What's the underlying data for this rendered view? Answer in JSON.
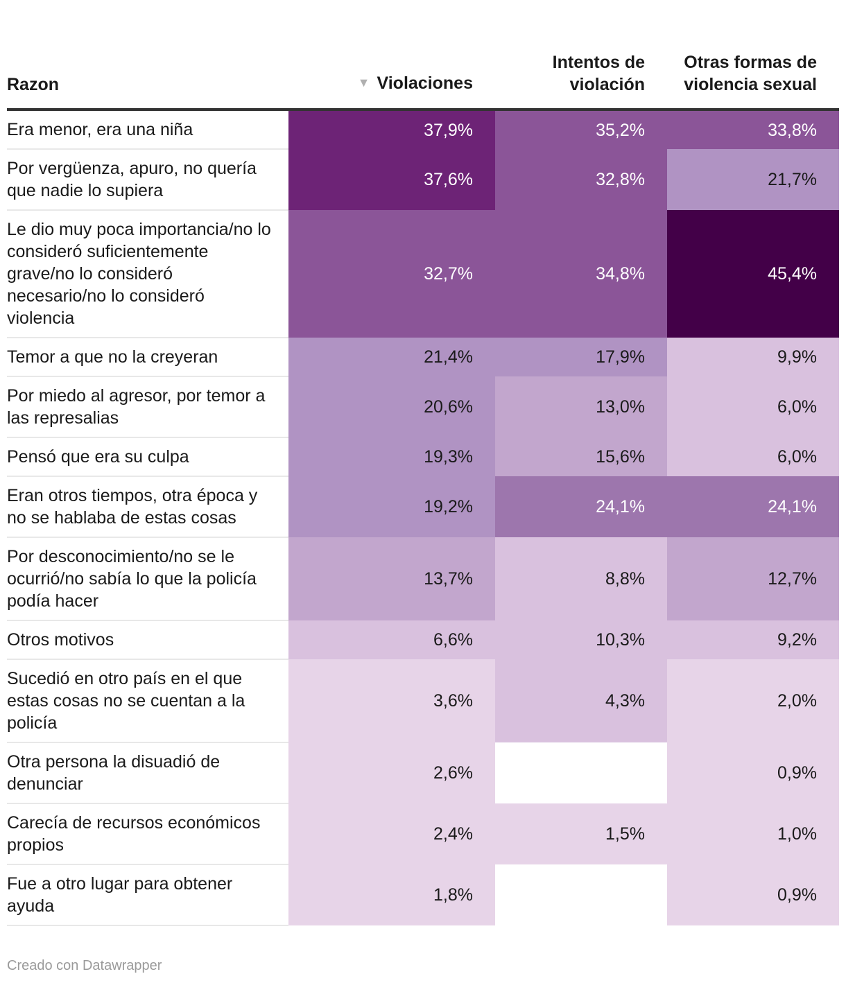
{
  "columns": [
    "Razon",
    "Violaciones",
    "Intentos de violación",
    "Otras formas de violencia sexual"
  ],
  "sort_icon": "▼",
  "footer": "Creado con Datawrapper",
  "colors": {
    "scale": [
      "#e7d4e8",
      "#d9c1de",
      "#c2a6cd",
      "#b093c3",
      "#9d76ad",
      "#8b5598",
      "#6d2376",
      "#430048"
    ],
    "text_light": "#ffffff",
    "text_dark": "#1a1a1a"
  },
  "chart_data": {
    "type": "table",
    "title": "",
    "columns": [
      "Violaciones",
      "Intentos de violación",
      "Otras formas de violencia sexual"
    ],
    "rows": [
      {
        "label": "Era menor, era una niña",
        "values": [
          "37,9%",
          "35,2%",
          "33,8%"
        ]
      },
      {
        "label": "Por vergüenza, apuro, no quería que nadie lo supiera",
        "values": [
          "37,6%",
          "32,8%",
          "21,7%"
        ]
      },
      {
        "label": "Le dio muy poca importancia/no lo consideró suficientemente grave/no lo consideró necesario/no lo consideró violencia",
        "values": [
          "32,7%",
          "34,8%",
          "45,4%"
        ]
      },
      {
        "label": "Temor a que no la creyeran",
        "values": [
          "21,4%",
          "17,9%",
          "9,9%"
        ]
      },
      {
        "label": "Por miedo al agresor, por temor a las represalias",
        "values": [
          "20,6%",
          "13,0%",
          "6,0%"
        ]
      },
      {
        "label": "Pensó que era su culpa",
        "values": [
          "19,3%",
          "15,6%",
          "6,0%"
        ]
      },
      {
        "label": "Eran otros tiempos, otra época y no se hablaba de estas cosas",
        "values": [
          "19,2%",
          "24,1%",
          "24,1%"
        ]
      },
      {
        "label": "Por desconocimiento/no se le ocurrió/no sabía lo que la policía podía hacer",
        "values": [
          "13,7%",
          "8,8%",
          "12,7%"
        ]
      },
      {
        "label": "Otros motivos",
        "values": [
          "6,6%",
          "10,3%",
          "9,2%"
        ]
      },
      {
        "label": "Sucedió en otro país en el que estas cosas no se cuentan a la policía",
        "values": [
          "3,6%",
          "4,3%",
          "2,0%"
        ]
      },
      {
        "label": "Otra persona la disuadió de denunciar",
        "values": [
          "2,6%",
          "",
          "0,9%"
        ]
      },
      {
        "label": "Carecía de recursos económicos propios",
        "values": [
          "2,4%",
          "1,5%",
          "1,0%"
        ]
      },
      {
        "label": "Fue a otro lugar para obtener ayuda",
        "values": [
          "1,8%",
          "",
          "0,9%"
        ]
      }
    ]
  }
}
